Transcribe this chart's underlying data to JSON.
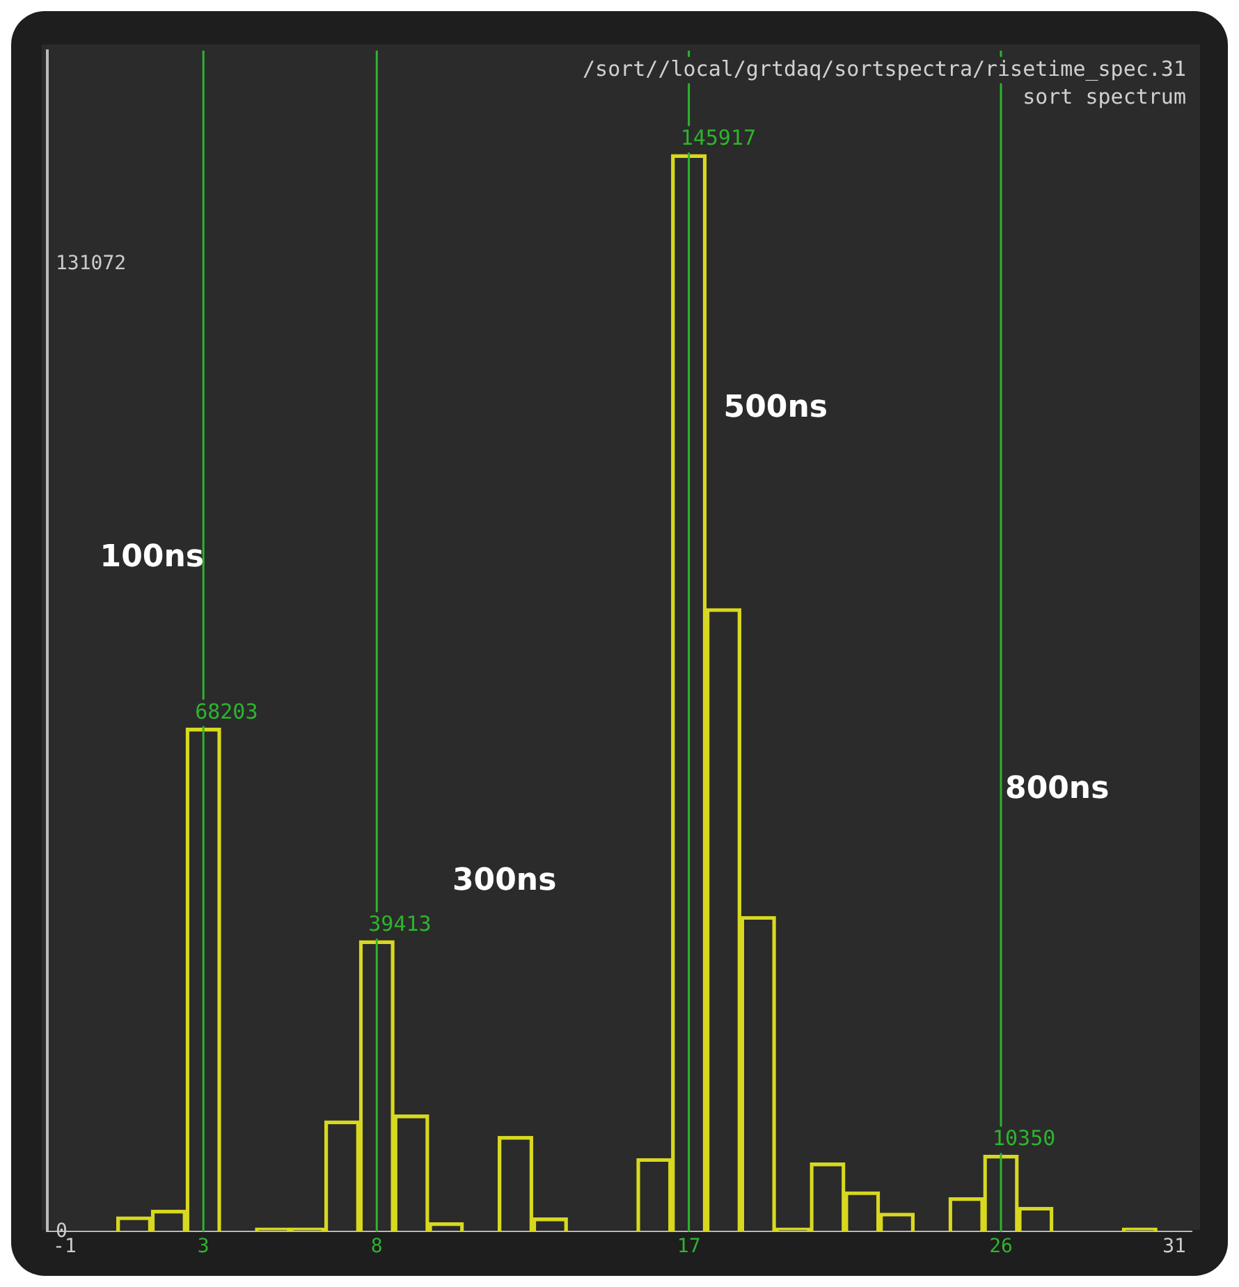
{
  "chart_data": {
    "type": "bar",
    "title": "/sort//local/grtdaq/sortspectra/risetime_spec.31",
    "subtitle": "sort spectrum",
    "x": [
      -1,
      0,
      1,
      2,
      3,
      4,
      5,
      6,
      7,
      8,
      9,
      10,
      11,
      12,
      13,
      14,
      15,
      16,
      17,
      18,
      19,
      20,
      21,
      22,
      23,
      24,
      25,
      26,
      27,
      28,
      29,
      30,
      31
    ],
    "values": [
      0,
      0,
      2000,
      2900,
      68203,
      0,
      500,
      500,
      15000,
      39413,
      15800,
      1200,
      0,
      12900,
      1850,
      0,
      0,
      9900,
      145917,
      84400,
      42700,
      500,
      9300,
      5400,
      2500,
      0,
      4600,
      10350,
      3300,
      0,
      0,
      500,
      0
    ],
    "value_labels": [
      null,
      null,
      null,
      null,
      "68203",
      null,
      null,
      null,
      null,
      "39413",
      null,
      null,
      null,
      null,
      null,
      null,
      null,
      null,
      "145917",
      null,
      null,
      null,
      null,
      null,
      null,
      null,
      null,
      "10350",
      null,
      null,
      null,
      null,
      null
    ],
    "color": "#d8d820",
    "xlim": [
      -1.5,
      31.5
    ],
    "xticks": [
      -1,
      3,
      8,
      17,
      26,
      31
    ],
    "ylim": [
      0,
      160000
    ],
    "yticks": [
      0,
      131072
    ],
    "grid": false,
    "legend": false,
    "ref_lines": [
      {
        "axis": "x",
        "value": 3,
        "color": "#2db52d"
      },
      {
        "axis": "x",
        "value": 8,
        "color": "#2db52d"
      },
      {
        "axis": "x",
        "value": 17,
        "color": "#2db52d"
      },
      {
        "axis": "x",
        "value": 26,
        "color": "#2db52d"
      }
    ],
    "annotations": [
      "100ns",
      "300ns",
      "500ns",
      "800ns"
    ]
  }
}
